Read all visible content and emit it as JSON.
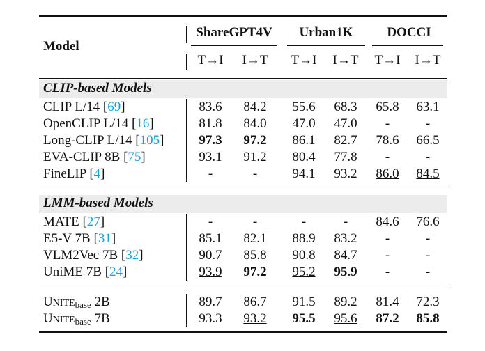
{
  "header": {
    "model_label": "Model",
    "groups": [
      "ShareGPT4V",
      "Urban1K",
      "DOCCI"
    ],
    "sub_t2i": "T→I",
    "sub_i2t": "I→T"
  },
  "sections": [
    {
      "title": "CLIP-based Models",
      "rows": [
        {
          "model": "CLIP L/14",
          "cite": "69",
          "cells": [
            {
              "v": "83.6"
            },
            {
              "v": "84.2"
            },
            {
              "v": "55.6"
            },
            {
              "v": "68.3"
            },
            {
              "v": "65.8"
            },
            {
              "v": "63.1"
            }
          ]
        },
        {
          "model": "OpenCLIP L/14",
          "cite": "16",
          "cells": [
            {
              "v": "81.8"
            },
            {
              "v": "84.0"
            },
            {
              "v": "47.0"
            },
            {
              "v": "47.0"
            },
            {
              "v": "-"
            },
            {
              "v": "-"
            }
          ]
        },
        {
          "model": "Long-CLIP L/14",
          "cite": "105",
          "cells": [
            {
              "v": "97.3",
              "b": true
            },
            {
              "v": "97.2",
              "b": true
            },
            {
              "v": "86.1"
            },
            {
              "v": "82.7"
            },
            {
              "v": "78.6"
            },
            {
              "v": "66.5"
            }
          ]
        },
        {
          "model": "EVA-CLIP 8B",
          "cite": "75",
          "cells": [
            {
              "v": "93.1"
            },
            {
              "v": "91.2"
            },
            {
              "v": "80.4"
            },
            {
              "v": "77.8"
            },
            {
              "v": "-"
            },
            {
              "v": "-"
            }
          ]
        },
        {
          "model": "FineLIP",
          "cite": "4",
          "cells": [
            {
              "v": "-"
            },
            {
              "v": "-"
            },
            {
              "v": "94.1"
            },
            {
              "v": "93.2"
            },
            {
              "v": "86.0",
              "u": true
            },
            {
              "v": "84.5",
              "u": true
            }
          ]
        }
      ]
    },
    {
      "title": "LMM-based Models",
      "rows": [
        {
          "model": "MATE",
          "cite": "27",
          "cells": [
            {
              "v": "-"
            },
            {
              "v": "-"
            },
            {
              "v": "-"
            },
            {
              "v": "-"
            },
            {
              "v": "84.6"
            },
            {
              "v": "76.6"
            }
          ]
        },
        {
          "model": "E5-V 7B",
          "cite": "31",
          "cells": [
            {
              "v": "85.1"
            },
            {
              "v": "82.1"
            },
            {
              "v": "88.9"
            },
            {
              "v": "83.2"
            },
            {
              "v": "-"
            },
            {
              "v": "-"
            }
          ]
        },
        {
          "model": "VLM2Vec 7B",
          "cite": "32",
          "cells": [
            {
              "v": "90.7"
            },
            {
              "v": "85.8"
            },
            {
              "v": "90.8"
            },
            {
              "v": "84.7"
            },
            {
              "v": "-"
            },
            {
              "v": "-"
            }
          ]
        },
        {
          "model": "UniME 7B",
          "cite": "24",
          "cells": [
            {
              "v": "93.9",
              "u": true
            },
            {
              "v": "97.2",
              "b": true
            },
            {
              "v": "95.2",
              "u": true
            },
            {
              "v": "95.9",
              "b": true
            },
            {
              "v": "-"
            },
            {
              "v": "-"
            }
          ]
        }
      ]
    }
  ],
  "unite": {
    "u_cap": "U",
    "nite_small": "NITE",
    "sub": "base",
    "rows": [
      {
        "size": "2B",
        "cells": [
          {
            "v": "89.7"
          },
          {
            "v": "86.7"
          },
          {
            "v": "91.5"
          },
          {
            "v": "89.2"
          },
          {
            "v": "81.4"
          },
          {
            "v": "72.3"
          }
        ]
      },
      {
        "size": "7B",
        "cells": [
          {
            "v": "93.3"
          },
          {
            "v": "93.2",
            "u": true
          },
          {
            "v": "95.5",
            "b": true
          },
          {
            "v": "95.6",
            "u": true
          },
          {
            "v": "87.2",
            "b": true
          },
          {
            "v": "85.8",
            "b": true
          }
        ]
      }
    ]
  }
}
